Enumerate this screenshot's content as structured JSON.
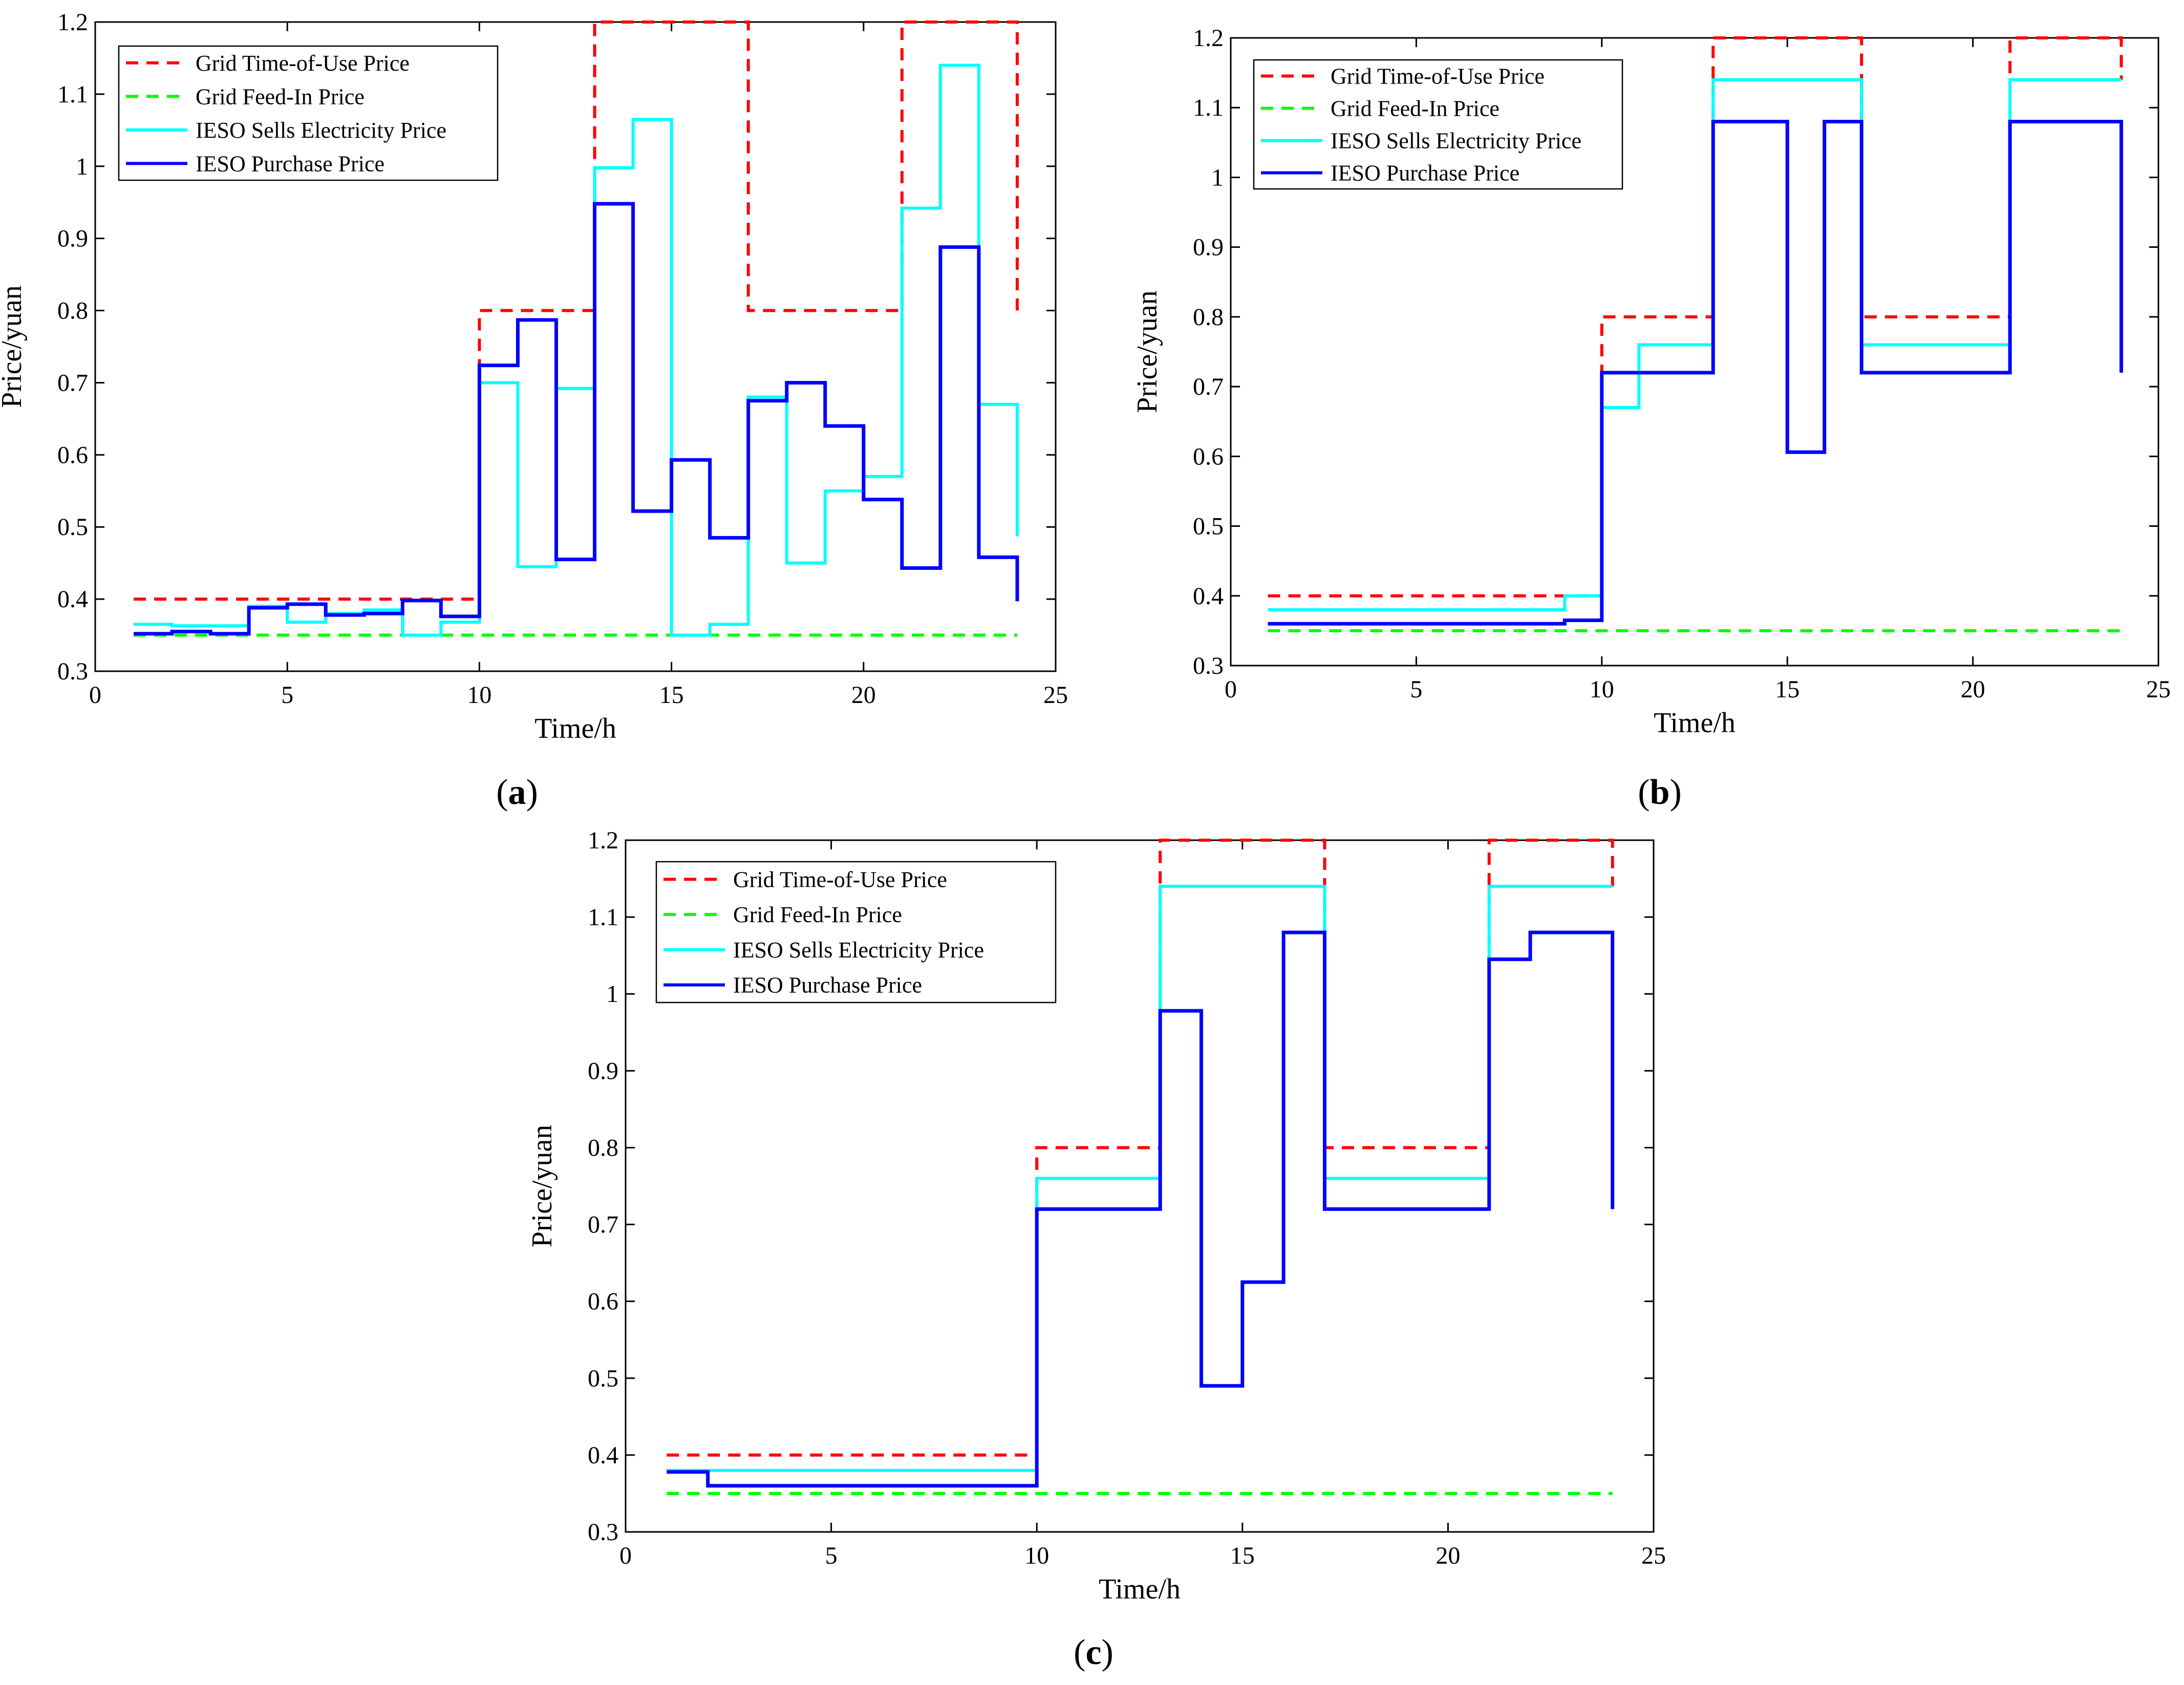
{
  "figure": {
    "panel_labels": [
      "a",
      "b",
      "c"
    ]
  },
  "colors": {
    "grid_tou": "#ff0000",
    "grid_feedin": "#00ff00",
    "ieso_sell": "#00ffff",
    "ieso_purchase": "#0000ff",
    "axis": "#000000"
  },
  "chart_data": [
    {
      "type": "line",
      "step": "post",
      "panel": "a",
      "title": "",
      "xlabel": "Time/h",
      "ylabel": "Price/yuan",
      "xlim": [
        0,
        25
      ],
      "ylim": [
        0.3,
        1.2
      ],
      "xticks": [
        0,
        5,
        10,
        15,
        20,
        25
      ],
      "yticks": [
        0.3,
        0.4,
        0.5,
        0.6,
        0.7,
        0.8,
        0.9,
        1,
        1.1,
        1.2
      ],
      "ytick_labels": [
        "0.3",
        "0.4",
        "0.5",
        "0.6",
        "0.7",
        "0.8",
        "0.9",
        "1",
        "1.1",
        "1.2"
      ],
      "legend_location": "top-left",
      "x": [
        1,
        2,
        3,
        4,
        5,
        6,
        7,
        8,
        9,
        10,
        11,
        12,
        13,
        14,
        15,
        16,
        17,
        18,
        19,
        20,
        21,
        22,
        23,
        24
      ],
      "series": [
        {
          "name": "Grid Time-of-Use Price",
          "style": "dashed",
          "color": "#ff0000",
          "values": [
            0.4,
            0.4,
            0.4,
            0.4,
            0.4,
            0.4,
            0.4,
            0.4,
            0.4,
            0.8,
            0.8,
            0.8,
            1.2,
            1.2,
            1.2,
            1.2,
            0.8,
            0.8,
            0.8,
            0.8,
            1.2,
            1.2,
            1.2,
            0.8
          ]
        },
        {
          "name": "Grid Feed-In Price",
          "style": "dashed",
          "color": "#00ff00",
          "values": [
            0.35,
            0.35,
            0.35,
            0.35,
            0.35,
            0.35,
            0.35,
            0.35,
            0.35,
            0.35,
            0.35,
            0.35,
            0.35,
            0.35,
            0.35,
            0.35,
            0.35,
            0.35,
            0.35,
            0.35,
            0.35,
            0.35,
            0.35,
            0.35
          ]
        },
        {
          "name": "IESO Sells Electricity Price",
          "style": "solid",
          "color": "#00ffff",
          "values": [
            0.365,
            0.363,
            0.363,
            0.39,
            0.368,
            0.38,
            0.385,
            0.35,
            0.368,
            0.7,
            0.445,
            0.692,
            0.998,
            1.065,
            0.35,
            0.365,
            0.68,
            0.45,
            0.55,
            0.57,
            0.942,
            1.14,
            0.67,
            0.487
          ]
        },
        {
          "name": "IESO Purchase Price",
          "style": "solid",
          "color": "#0000ff",
          "values": [
            0.352,
            0.355,
            0.352,
            0.388,
            0.393,
            0.378,
            0.38,
            0.398,
            0.376,
            0.724,
            0.787,
            0.455,
            0.948,
            0.522,
            0.593,
            0.485,
            0.675,
            0.7,
            0.64,
            0.538,
            0.443,
            0.888,
            0.458,
            0.397
          ]
        }
      ]
    },
    {
      "type": "line",
      "step": "post",
      "panel": "b",
      "title": "",
      "xlabel": "Time/h",
      "ylabel": "Price/yuan",
      "xlim": [
        0,
        25
      ],
      "ylim": [
        0.3,
        1.2
      ],
      "xticks": [
        0,
        5,
        10,
        15,
        20,
        25
      ],
      "yticks": [
        0.3,
        0.4,
        0.5,
        0.6,
        0.7,
        0.8,
        0.9,
        1,
        1.1,
        1.2
      ],
      "ytick_labels": [
        "0.3",
        "0.4",
        "0.5",
        "0.6",
        "0.7",
        "0.8",
        "0.9",
        "1",
        "1.1",
        "1.2"
      ],
      "legend_location": "top-left",
      "x": [
        1,
        2,
        3,
        4,
        5,
        6,
        7,
        8,
        9,
        10,
        11,
        12,
        13,
        14,
        15,
        16,
        17,
        18,
        19,
        20,
        21,
        22,
        23,
        24
      ],
      "series": [
        {
          "name": "Grid Time-of-Use Price",
          "style": "dashed",
          "color": "#ff0000",
          "values": [
            0.4,
            0.4,
            0.4,
            0.4,
            0.4,
            0.4,
            0.4,
            0.4,
            0.4,
            0.8,
            0.8,
            0.8,
            1.2,
            1.2,
            1.2,
            1.2,
            0.8,
            0.8,
            0.8,
            0.8,
            1.2,
            1.2,
            1.2,
            1.14
          ]
        },
        {
          "name": "Grid Feed-In Price",
          "style": "dashed",
          "color": "#00ff00",
          "values": [
            0.35,
            0.35,
            0.35,
            0.35,
            0.35,
            0.35,
            0.35,
            0.35,
            0.35,
            0.35,
            0.35,
            0.35,
            0.35,
            0.35,
            0.35,
            0.35,
            0.35,
            0.35,
            0.35,
            0.35,
            0.35,
            0.35,
            0.35,
            0.35
          ]
        },
        {
          "name": "IESO Sells Electricity Price",
          "style": "solid",
          "color": "#00ffff",
          "values": [
            0.38,
            0.38,
            0.38,
            0.38,
            0.38,
            0.38,
            0.38,
            0.38,
            0.4,
            0.67,
            0.76,
            0.76,
            1.14,
            1.14,
            1.14,
            1.14,
            0.76,
            0.76,
            0.76,
            0.76,
            1.14,
            1.14,
            1.14,
            1.14
          ]
        },
        {
          "name": "IESO Purchase Price",
          "style": "solid",
          "color": "#0000ff",
          "values": [
            0.36,
            0.36,
            0.36,
            0.36,
            0.36,
            0.36,
            0.36,
            0.36,
            0.365,
            0.72,
            0.72,
            0.72,
            1.08,
            1.08,
            0.606,
            1.08,
            0.72,
            0.72,
            0.72,
            0.72,
            1.08,
            1.08,
            1.08,
            0.72
          ]
        }
      ]
    },
    {
      "type": "line",
      "step": "post",
      "panel": "c",
      "title": "",
      "xlabel": "Time/h",
      "ylabel": "Price/yuan",
      "xlim": [
        0,
        25
      ],
      "ylim": [
        0.3,
        1.2
      ],
      "xticks": [
        0,
        5,
        10,
        15,
        20,
        25
      ],
      "yticks": [
        0.3,
        0.4,
        0.5,
        0.6,
        0.7,
        0.8,
        0.9,
        1,
        1.1,
        1.2
      ],
      "ytick_labels": [
        "0.3",
        "0.4",
        "0.5",
        "0.6",
        "0.7",
        "0.8",
        "0.9",
        "1",
        "1.1",
        "1.2"
      ],
      "legend_location": "top-left",
      "x": [
        1,
        2,
        3,
        4,
        5,
        6,
        7,
        8,
        9,
        10,
        11,
        12,
        13,
        14,
        15,
        16,
        17,
        18,
        19,
        20,
        21,
        22,
        23,
        24
      ],
      "series": [
        {
          "name": "Grid Time-of-Use Price",
          "style": "dashed",
          "color": "#ff0000",
          "values": [
            0.4,
            0.4,
            0.4,
            0.4,
            0.4,
            0.4,
            0.4,
            0.4,
            0.4,
            0.8,
            0.8,
            0.8,
            1.2,
            1.2,
            1.2,
            1.2,
            0.8,
            0.8,
            0.8,
            0.8,
            1.2,
            1.2,
            1.2,
            1.14
          ]
        },
        {
          "name": "Grid Feed-In Price",
          "style": "dashed",
          "color": "#00ff00",
          "values": [
            0.35,
            0.35,
            0.35,
            0.35,
            0.35,
            0.35,
            0.35,
            0.35,
            0.35,
            0.35,
            0.35,
            0.35,
            0.35,
            0.35,
            0.35,
            0.35,
            0.35,
            0.35,
            0.35,
            0.35,
            0.35,
            0.35,
            0.35,
            0.35
          ]
        },
        {
          "name": "IESO Sells Electricity Price",
          "style": "solid",
          "color": "#00ffff",
          "values": [
            0.38,
            0.38,
            0.38,
            0.38,
            0.38,
            0.38,
            0.38,
            0.38,
            0.38,
            0.76,
            0.76,
            0.76,
            1.14,
            1.14,
            1.14,
            1.14,
            0.76,
            0.76,
            0.76,
            0.76,
            1.14,
            1.14,
            1.14,
            1.14
          ]
        },
        {
          "name": "IESO Purchase Price",
          "style": "solid",
          "color": "#0000ff",
          "values": [
            0.378,
            0.36,
            0.36,
            0.36,
            0.36,
            0.36,
            0.36,
            0.36,
            0.36,
            0.72,
            0.72,
            0.72,
            0.978,
            0.49,
            0.625,
            1.08,
            0.72,
            0.72,
            0.72,
            0.72,
            1.045,
            1.08,
            1.08,
            0.72
          ]
        }
      ]
    }
  ]
}
